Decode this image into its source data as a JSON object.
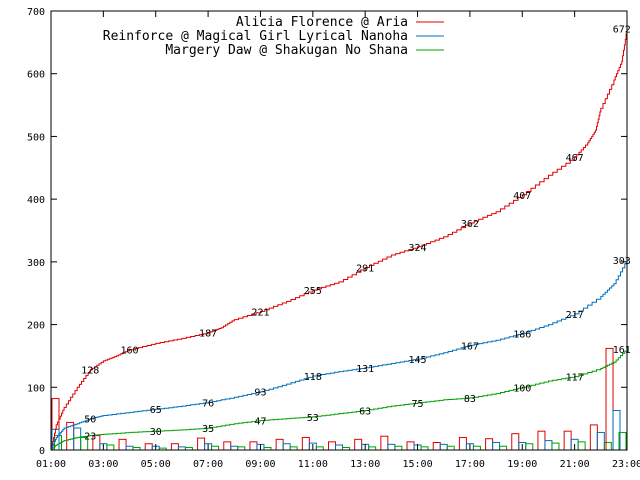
{
  "chart_data": {
    "type": "line",
    "xlim": [
      1,
      23
    ],
    "ylim": [
      0,
      700
    ],
    "x_ticks": [
      {
        "value": 1,
        "label": "01:00"
      },
      {
        "value": 3,
        "label": "03:00"
      },
      {
        "value": 5,
        "label": "05:00"
      },
      {
        "value": 7,
        "label": "07:00"
      },
      {
        "value": 9,
        "label": "09:00"
      },
      {
        "value": 11,
        "label": "11:00"
      },
      {
        "value": 13,
        "label": "13:00"
      },
      {
        "value": 15,
        "label": "15:00"
      },
      {
        "value": 17,
        "label": "17:00"
      },
      {
        "value": 19,
        "label": "19:00"
      },
      {
        "value": 21,
        "label": "21:00"
      },
      {
        "value": 23,
        "label": "23:00"
      }
    ],
    "y_ticks": [
      {
        "value": 0,
        "label": "0"
      },
      {
        "value": 100,
        "label": "100"
      },
      {
        "value": 200,
        "label": "200"
      },
      {
        "value": 300,
        "label": "300"
      },
      {
        "value": 400,
        "label": "400"
      },
      {
        "value": 500,
        "label": "500"
      },
      {
        "value": 600,
        "label": "600"
      },
      {
        "value": 700,
        "label": "700"
      }
    ],
    "grid": false,
    "legend_position": "top-right",
    "series": [
      {
        "name": "Alicia Florence @ Aria",
        "color": "#e00000",
        "points": [
          [
            1,
            0
          ],
          [
            1.2,
            40
          ],
          [
            1.5,
            68
          ],
          [
            2,
            100
          ],
          [
            2.5,
            128
          ],
          [
            3,
            142
          ],
          [
            3.5,
            150
          ],
          [
            4,
            160
          ],
          [
            5,
            170
          ],
          [
            6,
            178
          ],
          [
            7,
            187
          ],
          [
            7.5,
            195
          ],
          [
            8,
            208
          ],
          [
            9,
            221
          ],
          [
            10,
            237
          ],
          [
            11,
            255
          ],
          [
            12,
            268
          ],
          [
            13,
            291
          ],
          [
            14,
            311
          ],
          [
            15,
            324
          ],
          [
            16,
            340
          ],
          [
            17,
            362
          ],
          [
            18,
            380
          ],
          [
            19,
            407
          ],
          [
            20,
            438
          ],
          [
            21,
            467
          ],
          [
            21.5,
            490
          ],
          [
            21.8,
            510
          ],
          [
            22,
            545
          ],
          [
            22.5,
            590
          ],
          [
            22.8,
            620
          ],
          [
            23,
            672
          ]
        ],
        "labels": [
          {
            "x": 2.5,
            "y": 128,
            "text": "128"
          },
          {
            "x": 4,
            "y": 160,
            "text": "160"
          },
          {
            "x": 7,
            "y": 187,
            "text": "187"
          },
          {
            "x": 9,
            "y": 221,
            "text": "221"
          },
          {
            "x": 11,
            "y": 255,
            "text": "255"
          },
          {
            "x": 13,
            "y": 291,
            "text": "291"
          },
          {
            "x": 15,
            "y": 324,
            "text": "324"
          },
          {
            "x": 17,
            "y": 362,
            "text": "362"
          },
          {
            "x": 19,
            "y": 407,
            "text": "407"
          },
          {
            "x": 21,
            "y": 467,
            "text": "467"
          },
          {
            "x": 22.8,
            "y": 672,
            "text": "672"
          }
        ]
      },
      {
        "name": "Reinforce @ Magical Girl Lyrical Nanoha",
        "color": "#0070c0",
        "points": [
          [
            1,
            0
          ],
          [
            1.2,
            20
          ],
          [
            1.5,
            35
          ],
          [
            2,
            42
          ],
          [
            2.5,
            50
          ],
          [
            3,
            55
          ],
          [
            4,
            60
          ],
          [
            5,
            65
          ],
          [
            6,
            70
          ],
          [
            7,
            76
          ],
          [
            8,
            84
          ],
          [
            9,
            93
          ],
          [
            10,
            105
          ],
          [
            11,
            118
          ],
          [
            12,
            125
          ],
          [
            13,
            131
          ],
          [
            14,
            138
          ],
          [
            15,
            145
          ],
          [
            16,
            155
          ],
          [
            17,
            167
          ],
          [
            18,
            175
          ],
          [
            19,
            186
          ],
          [
            20,
            200
          ],
          [
            21,
            217
          ],
          [
            22,
            245
          ],
          [
            22.5,
            265
          ],
          [
            23,
            303
          ]
        ],
        "labels": [
          {
            "x": 2.5,
            "y": 50,
            "text": "50"
          },
          {
            "x": 5,
            "y": 65,
            "text": "65"
          },
          {
            "x": 7,
            "y": 76,
            "text": "76"
          },
          {
            "x": 9,
            "y": 93,
            "text": "93"
          },
          {
            "x": 11,
            "y": 118,
            "text": "118"
          },
          {
            "x": 13,
            "y": 131,
            "text": "131"
          },
          {
            "x": 15,
            "y": 145,
            "text": "145"
          },
          {
            "x": 17,
            "y": 167,
            "text": "167"
          },
          {
            "x": 19,
            "y": 186,
            "text": "186"
          },
          {
            "x": 21,
            "y": 217,
            "text": "217"
          },
          {
            "x": 22.8,
            "y": 303,
            "text": "303"
          }
        ]
      },
      {
        "name": "Margery Daw @ Shakugan No Shana",
        "color": "#00a000",
        "points": [
          [
            1,
            0
          ],
          [
            1.2,
            8
          ],
          [
            1.5,
            15
          ],
          [
            2,
            20
          ],
          [
            2.5,
            23
          ],
          [
            3,
            25
          ],
          [
            4,
            28
          ],
          [
            5,
            30
          ],
          [
            6,
            32
          ],
          [
            7,
            35
          ],
          [
            8,
            42
          ],
          [
            9,
            47
          ],
          [
            10,
            50
          ],
          [
            11,
            53
          ],
          [
            12,
            58
          ],
          [
            13,
            63
          ],
          [
            14,
            70
          ],
          [
            15,
            75
          ],
          [
            16,
            80
          ],
          [
            17,
            83
          ],
          [
            18,
            90
          ],
          [
            19,
            100
          ],
          [
            20,
            110
          ],
          [
            21,
            117
          ],
          [
            22,
            130
          ],
          [
            22.5,
            140
          ],
          [
            23,
            161
          ]
        ],
        "labels": [
          {
            "x": 2.5,
            "y": 23,
            "text": "23"
          },
          {
            "x": 5,
            "y": 30,
            "text": "30"
          },
          {
            "x": 7,
            "y": 35,
            "text": "35"
          },
          {
            "x": 9,
            "y": 47,
            "text": "47"
          },
          {
            "x": 11,
            "y": 53,
            "text": "53"
          },
          {
            "x": 13,
            "y": 63,
            "text": "63"
          },
          {
            "x": 15,
            "y": 75,
            "text": "75"
          },
          {
            "x": 17,
            "y": 83,
            "text": "83"
          },
          {
            "x": 19,
            "y": 100,
            "text": "100"
          },
          {
            "x": 21,
            "y": 117,
            "text": "117"
          },
          {
            "x": 22.8,
            "y": 161,
            "text": "161"
          }
        ]
      }
    ],
    "bars": {
      "series_order": [
        "Alicia Florence @ Aria",
        "Reinforce @ Magical Girl Lyrical Nanoha",
        "Margery Daw @ Shakugan No Shana"
      ],
      "slots": [
        {
          "x": 1.0,
          "values": [
            82,
            33,
            23
          ]
        },
        {
          "x": 2.0,
          "values": [
            44,
            35,
            20
          ]
        },
        {
          "x": 3.0,
          "values": [
            23,
            10,
            8
          ]
        },
        {
          "x": 4.0,
          "values": [
            17,
            6,
            4
          ]
        },
        {
          "x": 5.0,
          "values": [
            10,
            6,
            3
          ]
        },
        {
          "x": 6.0,
          "values": [
            10,
            5,
            4
          ]
        },
        {
          "x": 7.0,
          "values": [
            19,
            10,
            6
          ]
        },
        {
          "x": 8.0,
          "values": [
            13,
            6,
            5
          ]
        },
        {
          "x": 9.0,
          "values": [
            13,
            9,
            4
          ]
        },
        {
          "x": 10.0,
          "values": [
            17,
            10,
            5
          ]
        },
        {
          "x": 11.0,
          "values": [
            20,
            11,
            5
          ]
        },
        {
          "x": 12.0,
          "values": [
            13,
            8,
            4
          ]
        },
        {
          "x": 13.0,
          "values": [
            17,
            9,
            5
          ]
        },
        {
          "x": 14.0,
          "values": [
            22,
            9,
            6
          ]
        },
        {
          "x": 15.0,
          "values": [
            13,
            8,
            5
          ]
        },
        {
          "x": 16.0,
          "values": [
            12,
            9,
            6
          ]
        },
        {
          "x": 17.0,
          "values": [
            20,
            10,
            6
          ]
        },
        {
          "x": 18.0,
          "values": [
            18,
            12,
            6
          ]
        },
        {
          "x": 19.0,
          "values": [
            26,
            12,
            10
          ]
        },
        {
          "x": 20.0,
          "values": [
            30,
            15,
            11
          ]
        },
        {
          "x": 21.0,
          "values": [
            30,
            17,
            13
          ]
        },
        {
          "x": 22.0,
          "values": [
            40,
            28,
            12
          ]
        },
        {
          "x": 22.6,
          "values": [
            162,
            63,
            28
          ]
        }
      ]
    }
  }
}
